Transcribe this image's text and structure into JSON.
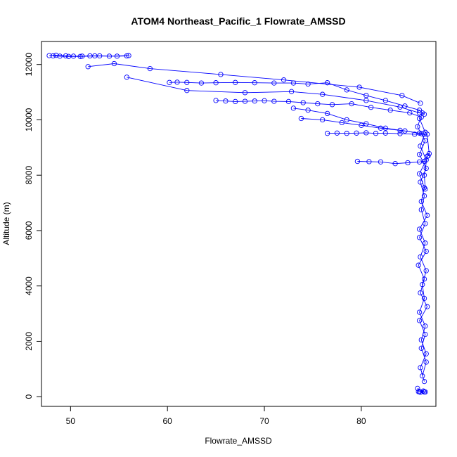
{
  "chart_data": {
    "type": "scatter",
    "title": "ATOM4 Northeast_Pacific_1 Flowrate_AMSSD",
    "xlabel": "Flowrate_AMSSD",
    "ylabel": "Altitude (m)",
    "xlim": [
      47,
      87.7
    ],
    "ylim": [
      -350,
      12830
    ],
    "x_ticks": [
      "50",
      "60",
      "70",
      "80"
    ],
    "y_ticks": [
      "0",
      "2000",
      "4000",
      "6000",
      "8000",
      "10000",
      "12000"
    ],
    "x_tick_values": [
      50,
      60,
      70,
      80
    ],
    "y_tick_values": [
      0,
      2000,
      4000,
      6000,
      8000,
      10000,
      12000
    ],
    "grid": false,
    "marker": "open-circle",
    "connected": true,
    "series_color": "#0000ff",
    "series": [
      {
        "x": [
          47.8,
          48.5,
          49.5,
          50.3,
          51.2,
          52.0,
          53.0,
          54.8,
          55.8,
          56.0,
          54.0,
          52.5,
          51.0,
          49.8,
          48.9,
          48.2
        ],
        "y": [
          12320,
          12330,
          12310,
          12300,
          12300,
          12310,
          12310,
          12300,
          12310,
          12320,
          12300,
          12310,
          12290,
          12290,
          12300,
          12310
        ]
      },
      {
        "x": [
          51.8,
          54.5,
          58.2,
          65.5,
          72.0,
          79.8,
          84.2,
          86.1
        ],
        "y": [
          11920,
          12030,
          11850,
          11640,
          11440,
          11180,
          10880,
          10600
        ]
      },
      {
        "x": [
          55.8,
          62.0,
          68.0,
          72.8,
          76.0,
          80.5,
          84.0,
          86.0
        ],
        "y": [
          11540,
          11060,
          10980,
          11020,
          10920,
          10700,
          10460,
          10250
        ]
      },
      {
        "x": [
          60.2,
          61.0,
          62.0,
          63.5,
          65.0,
          67.0,
          69.0,
          71.0,
          73.0,
          74.5,
          76.5,
          78.5,
          80.5,
          82.5,
          84.5,
          86.0,
          86.5
        ],
        "y": [
          11350,
          11360,
          11350,
          11330,
          11340,
          11350,
          11340,
          11330,
          11330,
          11290,
          11340,
          11080,
          10880,
          10700,
          10500,
          10350,
          10200
        ]
      },
      {
        "x": [
          65.0,
          66.0,
          67.0,
          68.0,
          69.0,
          70.0,
          71.0,
          72.5,
          74.0,
          75.5,
          77.0,
          79.0,
          81.0,
          83.0,
          85.0,
          86.2
        ],
        "y": [
          10700,
          10680,
          10660,
          10670,
          10680,
          10690,
          10670,
          10660,
          10620,
          10580,
          10550,
          10580,
          10450,
          10350,
          10250,
          10100
        ]
      },
      {
        "x": [
          73.0,
          74.5,
          76.5,
          78.5,
          80.5,
          82.5,
          84.5,
          86.2
        ],
        "y": [
          10420,
          10350,
          10230,
          10000,
          9860,
          9700,
          9600,
          9500
        ]
      },
      {
        "x": [
          73.8,
          76.0,
          78.0,
          80.0,
          82.0,
          84.0,
          86.0
        ],
        "y": [
          10050,
          10000,
          9900,
          9800,
          9700,
          9620,
          9520
        ]
      },
      {
        "x": [
          76.5,
          77.5,
          78.5,
          79.5,
          80.5,
          81.5,
          82.5,
          84.0,
          85.5,
          86.5
        ],
        "y": [
          9510,
          9520,
          9510,
          9520,
          9530,
          9510,
          9520,
          9500,
          9480,
          9480
        ]
      },
      {
        "x": [
          79.6,
          80.8,
          82.0,
          83.5,
          84.8,
          86.0,
          86.5
        ],
        "y": [
          8500,
          8490,
          8480,
          8420,
          8450,
          8480,
          8500
        ]
      },
      {
        "x": [
          86.3,
          85.8,
          86.6,
          86.0,
          86.7,
          86.1,
          86.5,
          86.2,
          86.6,
          86.0,
          86.7,
          85.9,
          86.5,
          86.1,
          86.8,
          86.0,
          86.6,
          86.2,
          86.7,
          86.3
        ],
        "y": [
          10250,
          9750,
          9250,
          8750,
          8250,
          7750,
          7250,
          6750,
          6250,
          5750,
          5250,
          4750,
          4250,
          3750,
          3250,
          2750,
          2250,
          1750,
          1250,
          750
        ]
      },
      {
        "x": [
          86.0,
          86.6,
          86.1,
          86.7,
          86.0,
          86.5,
          86.2,
          86.8,
          86.0,
          86.6,
          86.1,
          86.7,
          86.3,
          86.5,
          86.0,
          86.6,
          86.2,
          86.7,
          86.1,
          86.5
        ],
        "y": [
          10050,
          9550,
          9050,
          8550,
          8050,
          7550,
          7050,
          6550,
          6050,
          5550,
          5050,
          4550,
          4050,
          3550,
          3050,
          2550,
          2050,
          1550,
          1050,
          550
        ]
      },
      {
        "x": [
          86.8,
          87.0,
          86.9,
          86.8,
          86.5,
          86.6
        ],
        "y": [
          9480,
          8780,
          8700,
          8680,
          8000,
          7500
        ]
      },
      {
        "x": [
          85.8,
          86.4,
          86.0,
          86.5,
          86.1,
          86.6,
          85.9,
          86.4
        ],
        "y": [
          300,
          200,
          180,
          170,
          160,
          170,
          180,
          200
        ]
      }
    ]
  }
}
